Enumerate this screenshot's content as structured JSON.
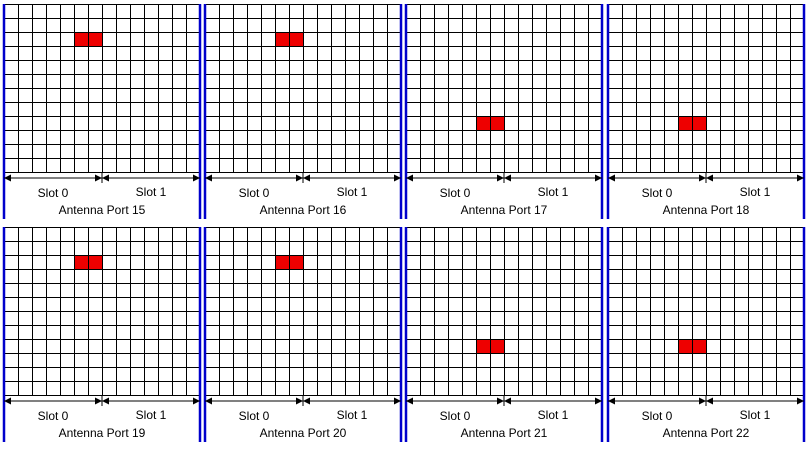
{
  "colors": {
    "grid_line": "#000000",
    "border": "#0000cc",
    "re_mark": "#ee0000",
    "background": "#ffffff"
  },
  "grid": {
    "symbols_per_subframe": 14,
    "subcarriers": 12
  },
  "slot_labels": [
    "Slot 0",
    "Slot 1"
  ],
  "panels": [
    {
      "title": "Antenna Port 15",
      "re": {
        "row": 2,
        "cols": [
          5,
          6
        ]
      }
    },
    {
      "title": "Antenna Port 16",
      "re": {
        "row": 2,
        "cols": [
          5,
          6
        ]
      }
    },
    {
      "title": "Antenna Port 17",
      "re": {
        "row": 8,
        "cols": [
          5,
          6
        ]
      }
    },
    {
      "title": "Antenna Port 18",
      "re": {
        "row": 8,
        "cols": [
          5,
          6
        ]
      }
    },
    {
      "title": "Antenna Port 19",
      "re": {
        "row": 2,
        "cols": [
          5,
          6
        ]
      }
    },
    {
      "title": "Antenna Port 20",
      "re": {
        "row": 2,
        "cols": [
          5,
          6
        ]
      }
    },
    {
      "title": "Antenna Port 21",
      "re": {
        "row": 8,
        "cols": [
          5,
          6
        ]
      }
    },
    {
      "title": "Antenna Port 22",
      "re": {
        "row": 8,
        "cols": [
          5,
          6
        ]
      }
    }
  ]
}
